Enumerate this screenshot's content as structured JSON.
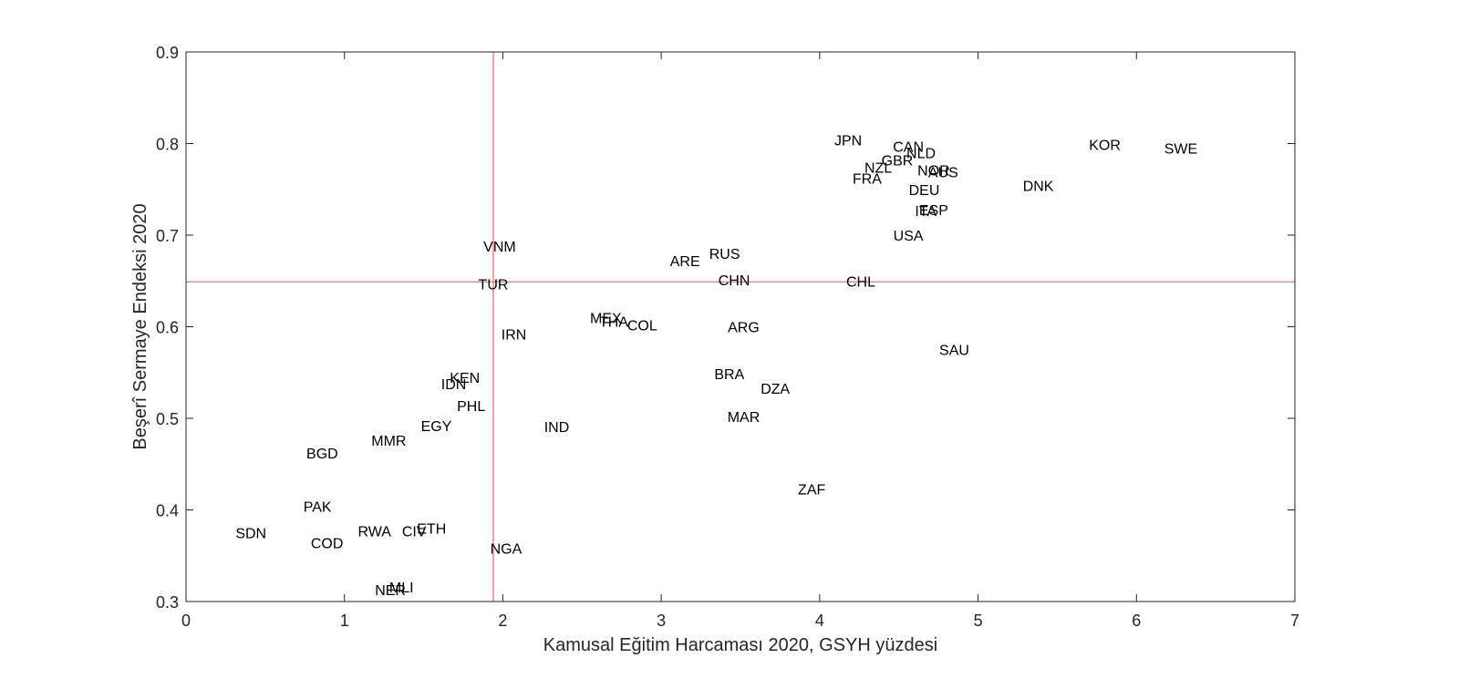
{
  "chart_data": {
    "type": "scatter",
    "title": "",
    "xlabel": "Kamusal Eğitim Harcaması 2020, GSYH yüzdesi",
    "ylabel": "Beşerî Sermaye Endeksi 2020",
    "xlim": [
      0,
      7
    ],
    "ylim": [
      0.3,
      0.9
    ],
    "xticks": [
      "0",
      "1",
      "2",
      "3",
      "4",
      "5",
      "6",
      "7"
    ],
    "yticks": [
      "0.3",
      "0.4",
      "0.5",
      "0.6",
      "0.7",
      "0.8",
      "0.9"
    ],
    "grid": false,
    "reference_lines": {
      "x": 1.94,
      "y": 0.649,
      "color": "#ff6b6b"
    },
    "points": [
      {
        "label": "JPN",
        "x": 4.18,
        "y": 0.804
      },
      {
        "label": "CAN",
        "x": 4.56,
        "y": 0.797
      },
      {
        "label": "NLD",
        "x": 4.64,
        "y": 0.79
      },
      {
        "label": "GBR",
        "x": 4.49,
        "y": 0.782
      },
      {
        "label": "NZL",
        "x": 4.37,
        "y": 0.774
      },
      {
        "label": "NOR",
        "x": 4.72,
        "y": 0.771
      },
      {
        "label": "AUS",
        "x": 4.78,
        "y": 0.769
      },
      {
        "label": "FRA",
        "x": 4.3,
        "y": 0.762
      },
      {
        "label": "DEU",
        "x": 4.66,
        "y": 0.75
      },
      {
        "label": "ESP",
        "x": 4.72,
        "y": 0.728
      },
      {
        "label": "ITA",
        "x": 4.67,
        "y": 0.727
      },
      {
        "label": "USA",
        "x": 4.56,
        "y": 0.7
      },
      {
        "label": "KOR",
        "x": 5.8,
        "y": 0.799
      },
      {
        "label": "SWE",
        "x": 6.28,
        "y": 0.795
      },
      {
        "label": "DNK",
        "x": 5.38,
        "y": 0.754
      },
      {
        "label": "VNM",
        "x": 1.98,
        "y": 0.688
      },
      {
        "label": "RUS",
        "x": 3.4,
        "y": 0.68
      },
      {
        "label": "ARE",
        "x": 3.15,
        "y": 0.672
      },
      {
        "label": "CHN",
        "x": 3.46,
        "y": 0.651
      },
      {
        "label": "CHL",
        "x": 4.26,
        "y": 0.65
      },
      {
        "label": "TUR",
        "x": 1.94,
        "y": 0.647
      },
      {
        "label": "MEX",
        "x": 2.65,
        "y": 0.61
      },
      {
        "label": "THA",
        "x": 2.7,
        "y": 0.606
      },
      {
        "label": "COL",
        "x": 2.88,
        "y": 0.602
      },
      {
        "label": "ARG",
        "x": 3.52,
        "y": 0.6
      },
      {
        "label": "IRN",
        "x": 2.07,
        "y": 0.592
      },
      {
        "label": "SAU",
        "x": 4.85,
        "y": 0.575
      },
      {
        "label": "BRA",
        "x": 3.43,
        "y": 0.549
      },
      {
        "label": "KEN",
        "x": 1.76,
        "y": 0.545
      },
      {
        "label": "IDN",
        "x": 1.69,
        "y": 0.538
      },
      {
        "label": "DZA",
        "x": 3.72,
        "y": 0.533
      },
      {
        "label": "PHL",
        "x": 1.8,
        "y": 0.514
      },
      {
        "label": "MAR",
        "x": 3.52,
        "y": 0.502
      },
      {
        "label": "EGY",
        "x": 1.58,
        "y": 0.492
      },
      {
        "label": "IND",
        "x": 2.34,
        "y": 0.491
      },
      {
        "label": "MMR",
        "x": 1.28,
        "y": 0.476
      },
      {
        "label": "BGD",
        "x": 0.86,
        "y": 0.462
      },
      {
        "label": "ZAF",
        "x": 3.95,
        "y": 0.423
      },
      {
        "label": "PAK",
        "x": 0.83,
        "y": 0.404
      },
      {
        "label": "SDN",
        "x": 0.41,
        "y": 0.375
      },
      {
        "label": "RWA",
        "x": 1.19,
        "y": 0.377
      },
      {
        "label": "CIV",
        "x": 1.44,
        "y": 0.377
      },
      {
        "label": "ETH",
        "x": 1.55,
        "y": 0.38
      },
      {
        "label": "COD",
        "x": 0.89,
        "y": 0.364
      },
      {
        "label": "NGA",
        "x": 2.02,
        "y": 0.358
      },
      {
        "label": "MLI",
        "x": 1.36,
        "y": 0.316
      },
      {
        "label": "NER",
        "x": 1.29,
        "y": 0.313
      }
    ]
  }
}
